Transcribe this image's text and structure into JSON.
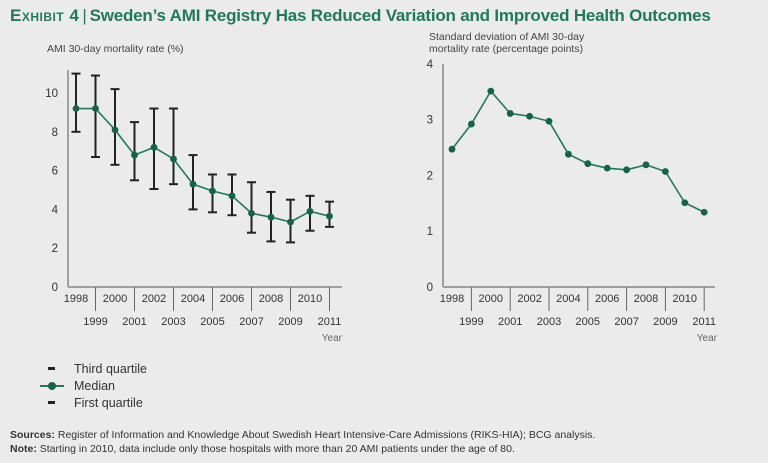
{
  "title": {
    "exhibit": "Exhibit 4",
    "separator": "|",
    "text": "Sweden’s AMI Registry Has Reduced Variation and Improved Health Outcomes"
  },
  "legend": {
    "items": [
      {
        "label": "Third quartile",
        "symbol": "dash"
      },
      {
        "label": "Median",
        "symbol": "line-dot"
      },
      {
        "label": "First quartile",
        "symbol": "dash"
      }
    ]
  },
  "footer": {
    "sources_label": "Sources:",
    "sources_text": "Register of Information and Knowledge About Swedish Heart Intensive-Care Admissions (RIKS-HIA); BCG analysis.",
    "note_label": "Note:",
    "note_text": "Starting in 2010, data include only those hospitals with more than 20 AMI patients under the age of 80."
  },
  "colors": {
    "accent": "#1e7a5a",
    "marker": "#12654a",
    "errorbar": "#222222",
    "axis": "#888888",
    "background": "#ebebeb"
  },
  "chart_data": [
    {
      "type": "line",
      "subtype": "median-with-quartile-error-bars",
      "title": "",
      "ylabel": "AMI 30-day mortality rate (%)",
      "xlabel": "Year",
      "ylim": [
        0,
        11
      ],
      "yticks": [
        0,
        2,
        4,
        6,
        8,
        10
      ],
      "x": [
        "1998",
        "1999",
        "2000",
        "2001",
        "2002",
        "2003",
        "2004",
        "2005",
        "2006",
        "2007",
        "2008",
        "2009",
        "2010",
        "2011"
      ],
      "series": [
        {
          "name": "Third quartile",
          "values": [
            11.0,
            10.9,
            10.2,
            8.5,
            9.2,
            9.2,
            6.8,
            5.8,
            5.8,
            5.4,
            4.9,
            4.5,
            4.7,
            4.4
          ]
        },
        {
          "name": "Median",
          "values": [
            9.2,
            9.2,
            8.1,
            6.8,
            7.2,
            6.6,
            5.3,
            4.95,
            4.7,
            3.8,
            3.6,
            3.35,
            3.9,
            3.65
          ]
        },
        {
          "name": "First quartile",
          "values": [
            8.0,
            6.7,
            6.3,
            5.5,
            5.05,
            5.3,
            4.0,
            3.85,
            3.7,
            2.8,
            2.35,
            2.3,
            2.9,
            3.1
          ]
        }
      ],
      "grid": false
    },
    {
      "type": "line",
      "title": "",
      "ylabel": "Standard deviation of AMI 30-day mortality rate (percentage points)",
      "ylabel_lines": [
        "Standard deviation of AMI 30-day",
        "mortality rate (percentage points)"
      ],
      "xlabel": "Year",
      "ylim": [
        0,
        4
      ],
      "yticks": [
        0,
        1,
        2,
        3,
        4
      ],
      "x": [
        "1998",
        "1999",
        "2000",
        "2001",
        "2002",
        "2003",
        "2004",
        "2005",
        "2006",
        "2007",
        "2008",
        "2009",
        "2010",
        "2011"
      ],
      "series": [
        {
          "name": "Standard deviation",
          "values": [
            2.47,
            2.92,
            3.51,
            3.11,
            3.06,
            2.97,
            2.38,
            2.21,
            2.13,
            2.1,
            2.19,
            2.07,
            1.51,
            1.34
          ]
        }
      ],
      "grid": false
    }
  ]
}
